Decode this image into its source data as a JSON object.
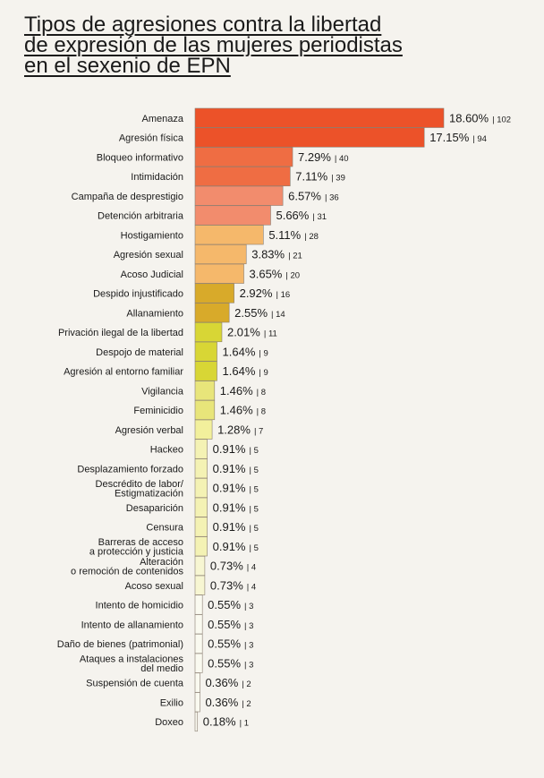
{
  "chart_data": {
    "type": "bar",
    "orientation": "horizontal",
    "title_lines": [
      "Tipos de agresiones contra la libertad",
      "de expresión de las mujeres periodistas",
      "en el sexenio de EPN"
    ],
    "xlim": [
      0,
      102
    ],
    "categories": [
      [
        "Amenaza"
      ],
      [
        "Agresión física"
      ],
      [
        "Bloqueo informativo"
      ],
      [
        "Intimidación"
      ],
      [
        "Campaña de desprestigio"
      ],
      [
        "Detención arbitraria"
      ],
      [
        "Hostigamiento"
      ],
      [
        "Agresión sexual"
      ],
      [
        "Acoso Judicial"
      ],
      [
        "Despido injustificado"
      ],
      [
        "Allanamiento"
      ],
      [
        "Privación ilegal de la libertad"
      ],
      [
        "Despojo de material"
      ],
      [
        "Agresión al entorno familiar"
      ],
      [
        "Vigilancia"
      ],
      [
        "Feminicidio"
      ],
      [
        "Agresión verbal"
      ],
      [
        "Hackeo"
      ],
      [
        "Desplazamiento forzado"
      ],
      [
        "Descrédito de labor/",
        "Estigmatización"
      ],
      [
        "Desaparición"
      ],
      [
        "Censura"
      ],
      [
        "Barreras de acceso",
        "a protección y justicia"
      ],
      [
        "Alteración",
        "o remoción de contenidos"
      ],
      [
        "Acoso sexual"
      ],
      [
        "Intento de homicidio"
      ],
      [
        "Intento de allanamiento"
      ],
      [
        "Daño de bienes (patrimonial)"
      ],
      [
        "Ataques a instalaciones",
        "del medio"
      ],
      [
        "Suspensión de cuenta"
      ],
      [
        "Exilio"
      ],
      [
        "Doxeo"
      ]
    ],
    "values": [
      102,
      94,
      40,
      39,
      36,
      31,
      28,
      21,
      20,
      16,
      14,
      11,
      9,
      9,
      8,
      8,
      7,
      5,
      5,
      5,
      5,
      5,
      5,
      4,
      4,
      3,
      3,
      3,
      3,
      2,
      2,
      1
    ],
    "percent_labels": [
      "18.60%",
      "17.15%",
      "7.29%",
      "7.11%",
      "6.57%",
      "5.66%",
      "5.11%",
      "3.83%",
      "3.65%",
      "2.92%",
      "2.55%",
      "2.01%",
      "1.64%",
      "1.64%",
      "1.46%",
      "1.46%",
      "1.28%",
      "0.91%",
      "0.91%",
      "0.91%",
      "0.91%",
      "0.91%",
      "0.91%",
      "0.73%",
      "0.73%",
      "0.55%",
      "0.55%",
      "0.55%",
      "0.55%",
      "0.36%",
      "0.36%",
      "0.18%"
    ],
    "count_labels": [
      "| 102",
      "| 94",
      "| 40",
      "| 39",
      "| 36",
      "| 31",
      "| 28",
      "| 21",
      "| 20",
      "| 16",
      "| 14",
      "| 11",
      "| 9",
      "| 9",
      "| 8",
      "| 8",
      "| 7",
      "| 5",
      "| 5",
      "| 5",
      "| 5",
      "| 5",
      "| 5",
      "| 4",
      "| 4",
      "| 3",
      "| 3",
      "| 3",
      "| 3",
      "| 2",
      "| 2",
      "| 1"
    ],
    "colors": [
      "#ec5229",
      "#ec5229",
      "#ef6d43",
      "#ef6d43",
      "#f28c6d",
      "#f28c6d",
      "#f5b86b",
      "#f5b86b",
      "#f5b86b",
      "#d8aa2a",
      "#d8aa2a",
      "#d8d635",
      "#d8d635",
      "#d8d635",
      "#e8e57a",
      "#e8e57a",
      "#f2f09c",
      "#f4f2b4",
      "#f4f2b4",
      "#f4f2b4",
      "#f4f2b4",
      "#f4f2b4",
      "#f4f2b4",
      "#f7f6d2",
      "#f7f6d2",
      "#fafaf0",
      "#fafaf0",
      "#fafaf0",
      "#fafaf0",
      "#fafaf0",
      "#fafaf0",
      "#fafaf0"
    ]
  }
}
